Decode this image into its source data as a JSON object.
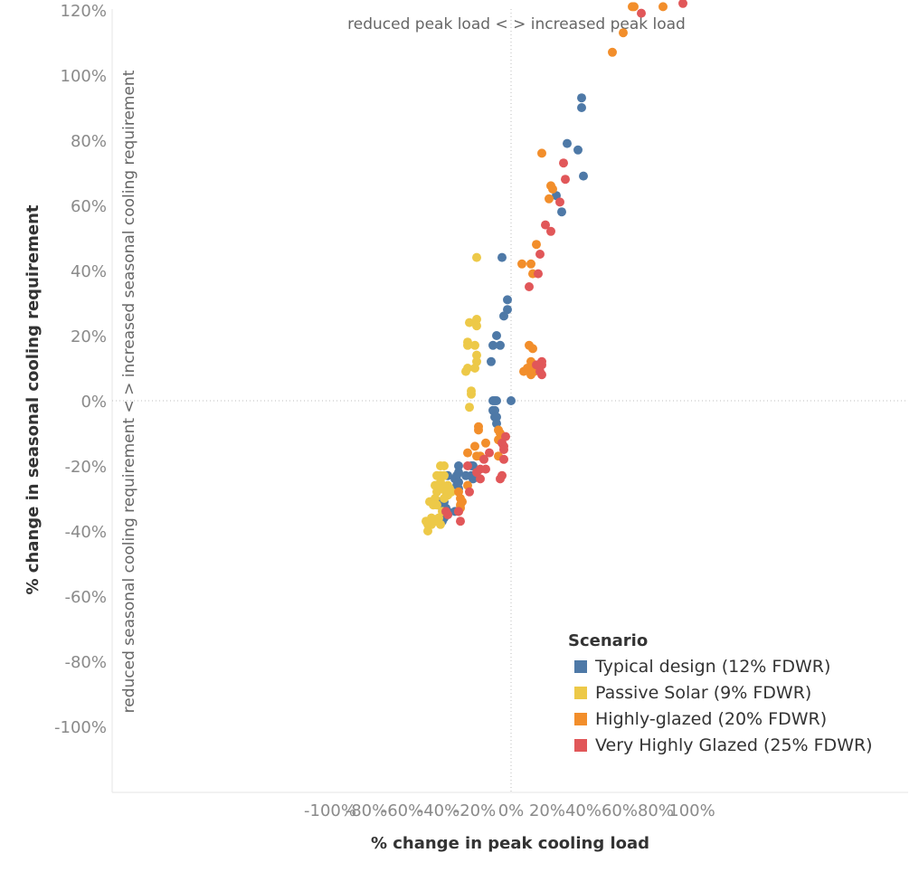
{
  "chart_data": {
    "type": "scatter",
    "title": "",
    "xlabel": "% change in peak cooling load",
    "ylabel": "% change in seasonal cooling requirement",
    "xlim": [
      -110,
      110
    ],
    "ylim": [
      -120,
      122
    ],
    "x_ticks": [
      "-100%",
      "-80%",
      "-60%",
      "-40%",
      "-20%",
      "0%",
      "20%",
      "40%",
      "60%",
      "80%",
      "100%"
    ],
    "y_ticks": [
      "120%",
      "100%",
      "80%",
      "60%",
      "40%",
      "20%",
      "0%",
      "-20%",
      "-40%",
      "-60%",
      "-80%",
      "-100%"
    ],
    "annotations": {
      "top": "reduced peak load < > increased peak load",
      "left": "reduced seasonal cooling requirement < > increased seasonal cooling requirement"
    },
    "grid": false,
    "reference_lines": {
      "x": 0,
      "y": 0
    },
    "legend": {
      "title": "Scenario",
      "placement": "bottom-right",
      "entries": [
        {
          "label": "Typical design (12% FDWR)",
          "color": "#4e79a7"
        },
        {
          "label": "Passive Solar (9% FDWR)",
          "color": "#edc948"
        },
        {
          "label": "Highly-glazed (20% FDWR)",
          "color": "#f28e2b"
        },
        {
          "label": "Very Highly Glazed (25% FDWR)",
          "color": "#e15759"
        }
      ]
    },
    "series": [
      {
        "name": "Typical design (12% FDWR)",
        "color": "#4e79a7",
        "points": [
          [
            39,
            93
          ],
          [
            39,
            90
          ],
          [
            31,
            79
          ],
          [
            37,
            77
          ],
          [
            40,
            69
          ],
          [
            25,
            63
          ],
          [
            28,
            58
          ],
          [
            -5,
            44
          ],
          [
            -2,
            31
          ],
          [
            -2,
            28
          ],
          [
            -4,
            26
          ],
          [
            -8,
            20
          ],
          [
            -10,
            17
          ],
          [
            -6,
            17
          ],
          [
            -11,
            12
          ],
          [
            0,
            0
          ],
          [
            -9,
            0
          ],
          [
            -8,
            0
          ],
          [
            -10,
            0
          ],
          [
            -10,
            -3
          ],
          [
            -9,
            -3
          ],
          [
            -9,
            -5
          ],
          [
            -8,
            -5
          ],
          [
            -8,
            -7
          ],
          [
            -22,
            -20
          ],
          [
            -21,
            -20
          ],
          [
            -19,
            -22
          ],
          [
            -22,
            -23
          ],
          [
            -21,
            -24
          ],
          [
            -25,
            -23
          ],
          [
            -29,
            -20
          ],
          [
            -29,
            -22
          ],
          [
            -30,
            -23
          ],
          [
            -31,
            -24
          ],
          [
            -29,
            -25
          ],
          [
            -30,
            -26
          ],
          [
            -29,
            -27
          ],
          [
            -35,
            -23
          ],
          [
            -37,
            -31
          ],
          [
            -36,
            -33
          ],
          [
            -35,
            -34
          ],
          [
            -37,
            -33
          ],
          [
            -38,
            -33
          ],
          [
            -40,
            -31
          ],
          [
            -31,
            -34
          ],
          [
            -37,
            -36
          ],
          [
            -38,
            -37
          ],
          [
            -35,
            -35
          ]
        ]
      },
      {
        "name": "Passive Solar (9% FDWR)",
        "color": "#edc948",
        "points": [
          [
            -19,
            44
          ],
          [
            -23,
            24
          ],
          [
            -19,
            25
          ],
          [
            -19,
            23
          ],
          [
            -24,
            18
          ],
          [
            -24,
            17
          ],
          [
            -20,
            17
          ],
          [
            -19,
            14
          ],
          [
            -19,
            12
          ],
          [
            -20,
            10
          ],
          [
            -24,
            10
          ],
          [
            -25,
            9
          ],
          [
            -22,
            3
          ],
          [
            -22,
            2
          ],
          [
            -23,
            -2
          ],
          [
            -39,
            -20
          ],
          [
            -37,
            -20
          ],
          [
            -39,
            -23
          ],
          [
            -37,
            -23
          ],
          [
            -41,
            -23
          ],
          [
            -39,
            -25
          ],
          [
            -42,
            -26
          ],
          [
            -39,
            -27
          ],
          [
            -35,
            -26
          ],
          [
            -34,
            -27
          ],
          [
            -36,
            -28
          ],
          [
            -35,
            -29
          ],
          [
            -33,
            -28
          ],
          [
            -37,
            -30
          ],
          [
            -41,
            -28
          ],
          [
            -42,
            -30
          ],
          [
            -45,
            -31
          ],
          [
            -43,
            -32
          ],
          [
            -41,
            -32
          ],
          [
            -44,
            -36
          ],
          [
            -45,
            -37
          ],
          [
            -46,
            -38
          ],
          [
            -47,
            -37
          ],
          [
            -46,
            -40
          ],
          [
            -44,
            -38
          ],
          [
            -41,
            -37
          ],
          [
            -40,
            -36
          ],
          [
            -39,
            -38
          ],
          [
            -38,
            -34
          ]
        ]
      },
      {
        "name": "Highly-glazed (20% FDWR)",
        "color": "#f28e2b",
        "points": [
          [
            67,
            121
          ],
          [
            68,
            121
          ],
          [
            84,
            121
          ],
          [
            62,
            113
          ],
          [
            56,
            107
          ],
          [
            17,
            76
          ],
          [
            22,
            66
          ],
          [
            23,
            65
          ],
          [
            21,
            62
          ],
          [
            14,
            48
          ],
          [
            11,
            42
          ],
          [
            6,
            42
          ],
          [
            12,
            39
          ],
          [
            10,
            17
          ],
          [
            12,
            16
          ],
          [
            11,
            12
          ],
          [
            12,
            11
          ],
          [
            13,
            9
          ],
          [
            11,
            8
          ],
          [
            9,
            10
          ],
          [
            7,
            9
          ],
          [
            -18,
            -8
          ],
          [
            -18,
            -9
          ],
          [
            -7,
            -9
          ],
          [
            -6,
            -10
          ],
          [
            -5,
            -11
          ],
          [
            -6,
            -12
          ],
          [
            -7,
            -12
          ],
          [
            -14,
            -13
          ],
          [
            -20,
            -14
          ],
          [
            -19,
            -17
          ],
          [
            -17,
            -17
          ],
          [
            -7,
            -17
          ],
          [
            -24,
            -16
          ],
          [
            -24,
            -26
          ],
          [
            -29,
            -28
          ],
          [
            -28,
            -30
          ],
          [
            -27,
            -31
          ],
          [
            -28,
            -32
          ],
          [
            -28,
            -33
          ],
          [
            -29,
            -34
          ]
        ]
      },
      {
        "name": "Very Highly Glazed (25% FDWR)",
        "color": "#e15759",
        "points": [
          [
            95,
            122
          ],
          [
            72,
            119
          ],
          [
            29,
            73
          ],
          [
            30,
            68
          ],
          [
            27,
            61
          ],
          [
            19,
            54
          ],
          [
            22,
            52
          ],
          [
            16,
            45
          ],
          [
            15,
            39
          ],
          [
            10,
            35
          ],
          [
            17,
            12
          ],
          [
            17,
            11
          ],
          [
            14,
            11
          ],
          [
            15,
            11
          ],
          [
            16,
            9
          ],
          [
            17,
            8
          ],
          [
            -3,
            -11
          ],
          [
            -5,
            -13
          ],
          [
            -4,
            -14
          ],
          [
            -4,
            -15
          ],
          [
            -12,
            -16
          ],
          [
            -15,
            -18
          ],
          [
            -4,
            -18
          ],
          [
            -17,
            -21
          ],
          [
            -14,
            -21
          ],
          [
            -19,
            -22
          ],
          [
            -17,
            -24
          ],
          [
            -5,
            -23
          ],
          [
            -6,
            -24
          ],
          [
            -24,
            -20
          ],
          [
            -23,
            -28
          ],
          [
            -29,
            -34
          ],
          [
            -28,
            -37
          ],
          [
            -36,
            -34
          ],
          [
            -35,
            -35
          ]
        ]
      }
    ]
  }
}
